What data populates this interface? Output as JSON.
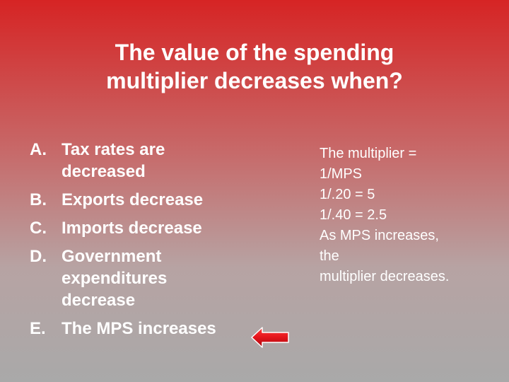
{
  "slide": {
    "title_lines": [
      "The value of the spending",
      "multiplier decreases when?"
    ],
    "options": [
      {
        "letter": "A.",
        "lines": [
          "Tax rates are",
          "decreased"
        ]
      },
      {
        "letter": "B.",
        "lines": [
          "Exports decrease"
        ]
      },
      {
        "letter": "C.",
        "lines": [
          "Imports decrease"
        ]
      },
      {
        "letter": "D.",
        "lines": [
          "Government",
          "expenditures",
          "decrease"
        ]
      },
      {
        "letter": "E.",
        "lines": [
          "The MPS increases"
        ]
      }
    ],
    "answer_arrow_icon": "left-arrow-icon",
    "notes_lines": [
      "The multiplier =",
      "1/MPS",
      "1/.20 = 5",
      "1/.40 = 2.5",
      "As MPS increases,",
      "the",
      "multiplier decreases."
    ],
    "colors": {
      "gradient_top": "#d62424",
      "gradient_bottom": "#a9a9a9",
      "text": "#ffffff",
      "arrow_fill": "#e3141b"
    }
  }
}
